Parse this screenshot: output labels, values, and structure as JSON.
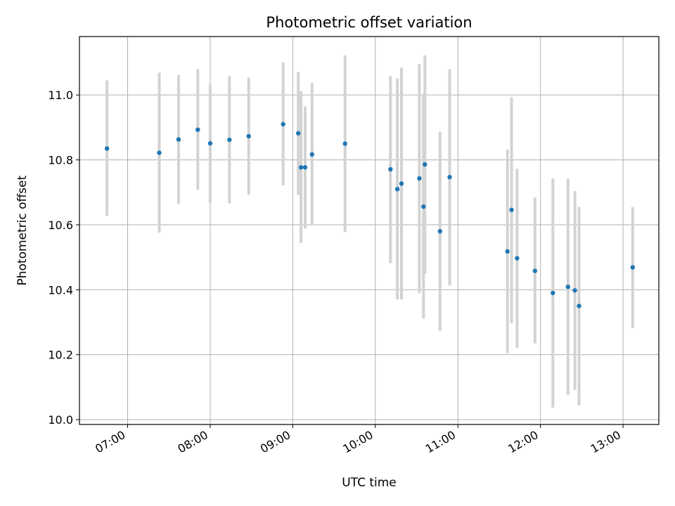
{
  "chart_data": {
    "type": "scatter",
    "title": "Photometric offset variation",
    "xlabel": "UTC time",
    "ylabel": "Photometric offset",
    "xlim": [
      "06:25",
      "13:26"
    ],
    "ylim": [
      9.985,
      11.18
    ],
    "x_ticks": [
      "07:00",
      "08:00",
      "09:00",
      "10:00",
      "11:00",
      "12:00",
      "13:00"
    ],
    "y_ticks": [
      "10.0",
      "10.2",
      "10.4",
      "10.6",
      "10.8",
      "11.0"
    ],
    "grid": true,
    "point_color": "#1f77b4",
    "errorbar_color": "#d3d3d3",
    "points": [
      {
        "x": "06:45",
        "y": 10.835,
        "low": 10.628,
        "high": 11.045
      },
      {
        "x": "07:23",
        "y": 10.822,
        "low": 10.576,
        "high": 11.069
      },
      {
        "x": "07:37",
        "y": 10.863,
        "low": 10.664,
        "high": 11.062
      },
      {
        "x": "07:51",
        "y": 10.893,
        "low": 10.708,
        "high": 11.08
      },
      {
        "x": "08:00",
        "y": 10.851,
        "low": 10.668,
        "high": 11.032
      },
      {
        "x": "08:14",
        "y": 10.862,
        "low": 10.666,
        "high": 11.058
      },
      {
        "x": "08:28",
        "y": 10.873,
        "low": 10.693,
        "high": 11.054
      },
      {
        "x": "08:53",
        "y": 10.91,
        "low": 10.722,
        "high": 11.101
      },
      {
        "x": "09:04",
        "y": 10.882,
        "low": 10.692,
        "high": 11.071
      },
      {
        "x": "09:06",
        "y": 10.777,
        "low": 10.544,
        "high": 11.012
      },
      {
        "x": "09:09",
        "y": 10.777,
        "low": 10.589,
        "high": 10.965
      },
      {
        "x": "09:14",
        "y": 10.817,
        "low": 10.598,
        "high": 11.036
      },
      {
        "x": "09:38",
        "y": 10.85,
        "low": 10.578,
        "high": 11.122
      },
      {
        "x": "10:11",
        "y": 10.771,
        "low": 10.482,
        "high": 11.058
      },
      {
        "x": "10:16",
        "y": 10.71,
        "low": 10.37,
        "high": 11.051
      },
      {
        "x": "10:19",
        "y": 10.727,
        "low": 10.37,
        "high": 11.084
      },
      {
        "x": "10:32",
        "y": 10.743,
        "low": 10.389,
        "high": 11.095
      },
      {
        "x": "10:35",
        "y": 10.656,
        "low": 10.311,
        "high": 11.0
      },
      {
        "x": "10:36",
        "y": 10.786,
        "low": 10.449,
        "high": 11.122
      },
      {
        "x": "10:47",
        "y": 10.58,
        "low": 10.273,
        "high": 10.887
      },
      {
        "x": "10:54",
        "y": 10.747,
        "low": 10.413,
        "high": 11.08
      },
      {
        "x": "11:36",
        "y": 10.518,
        "low": 10.205,
        "high": 10.832
      },
      {
        "x": "11:39",
        "y": 10.646,
        "low": 10.297,
        "high": 10.993
      },
      {
        "x": "11:43",
        "y": 10.497,
        "low": 10.221,
        "high": 10.773
      },
      {
        "x": "11:56",
        "y": 10.458,
        "low": 10.235,
        "high": 10.684
      },
      {
        "x": "12:09",
        "y": 10.39,
        "low": 10.037,
        "high": 10.743
      },
      {
        "x": "12:20",
        "y": 10.409,
        "low": 10.075,
        "high": 10.743
      },
      {
        "x": "12:25",
        "y": 10.398,
        "low": 10.092,
        "high": 10.704
      },
      {
        "x": "12:28",
        "y": 10.35,
        "low": 10.044,
        "high": 10.655
      },
      {
        "x": "13:07",
        "y": 10.469,
        "low": 10.282,
        "high": 10.655
      }
    ]
  }
}
